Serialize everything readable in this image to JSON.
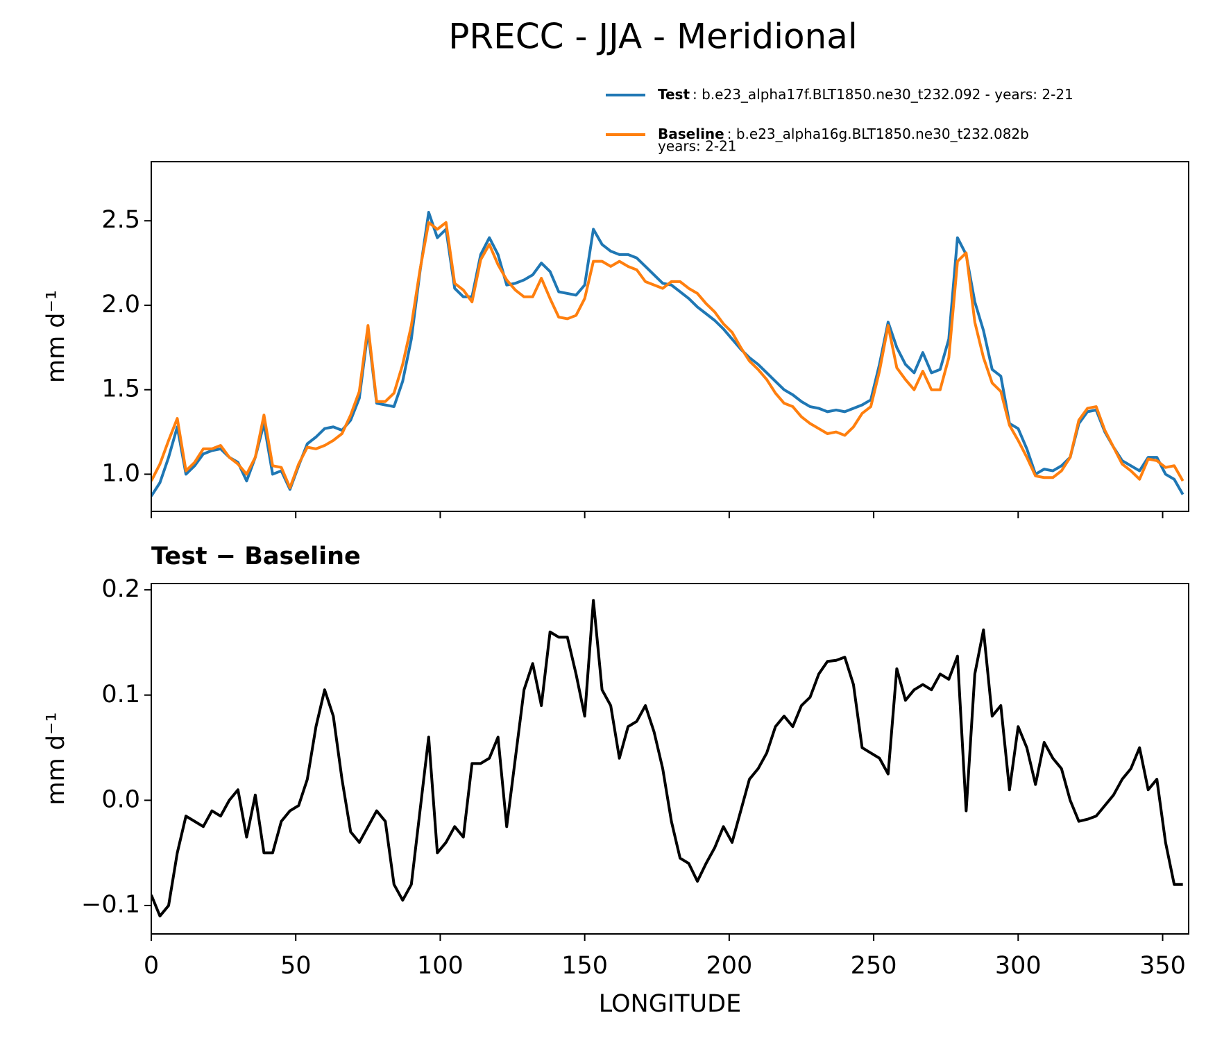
{
  "chart_data": [
    {
      "type": "line",
      "title": "PRECC - JJA - Meridional",
      "ylabel": "mm d⁻¹",
      "x": [
        0,
        3,
        6,
        9,
        12,
        15,
        18,
        21,
        24,
        27,
        30,
        33,
        36,
        39,
        42,
        45,
        48,
        51,
        54,
        57,
        60,
        63,
        66,
        69,
        72,
        75,
        78,
        81,
        84,
        87,
        90,
        93,
        96,
        99,
        102,
        105,
        108,
        111,
        114,
        117,
        120,
        123,
        126,
        129,
        132,
        135,
        138,
        141,
        144,
        147,
        150,
        153,
        156,
        159,
        162,
        165,
        168,
        171,
        174,
        177,
        180,
        183,
        186,
        189,
        192,
        195,
        198,
        201,
        204,
        207,
        210,
        213,
        216,
        219,
        222,
        225,
        228,
        231,
        234,
        237,
        240,
        243,
        246,
        249,
        252,
        255,
        258,
        261,
        264,
        267,
        270,
        273,
        276,
        279,
        282,
        285,
        288,
        291,
        294,
        297,
        300,
        303,
        306,
        309,
        312,
        315,
        318,
        321,
        324,
        327,
        330,
        333,
        336,
        339,
        342,
        345,
        348,
        351,
        354,
        357
      ],
      "series": [
        {
          "name": "Test",
          "description": [
            ": b.e23_alpha17f.BLT1850.ne30_t232.092 - years: 2-21"
          ],
          "color": "#1f77b4",
          "values": [
            0.87,
            0.95,
            1.1,
            1.28,
            1.0,
            1.05,
            1.12,
            1.14,
            1.15,
            1.1,
            1.07,
            0.96,
            1.1,
            1.3,
            1.0,
            1.02,
            0.91,
            1.05,
            1.18,
            1.22,
            1.27,
            1.28,
            1.26,
            1.32,
            1.45,
            1.85,
            1.42,
            1.41,
            1.4,
            1.55,
            1.8,
            2.2,
            2.55,
            2.4,
            2.45,
            2.1,
            2.05,
            2.05,
            2.3,
            2.4,
            2.3,
            2.12,
            2.13,
            2.15,
            2.18,
            2.25,
            2.2,
            2.08,
            2.07,
            2.06,
            2.12,
            2.45,
            2.36,
            2.32,
            2.3,
            2.3,
            2.28,
            2.23,
            2.18,
            2.13,
            2.12,
            2.08,
            2.04,
            1.99,
            1.95,
            1.91,
            1.86,
            1.8,
            1.74,
            1.69,
            1.65,
            1.6,
            1.55,
            1.5,
            1.47,
            1.43,
            1.4,
            1.39,
            1.37,
            1.38,
            1.37,
            1.39,
            1.41,
            1.44,
            1.65,
            1.9,
            1.75,
            1.65,
            1.6,
            1.72,
            1.6,
            1.62,
            1.8,
            2.4,
            2.3,
            2.02,
            1.85,
            1.62,
            1.58,
            1.3,
            1.27,
            1.15,
            1.0,
            1.03,
            1.02,
            1.05,
            1.1,
            1.3,
            1.37,
            1.38,
            1.25,
            1.16,
            1.08,
            1.05,
            1.02,
            1.1,
            1.1,
            1.0,
            0.97,
            0.88
          ]
        },
        {
          "name": "Baseline",
          "description": [
            ": b.e23_alpha16g.BLT1850.ne30_t232.082b",
            "years: 2-21"
          ],
          "color": "#ff7f0e",
          "values": [
            0.96,
            1.06,
            1.2,
            1.33,
            1.02,
            1.07,
            1.15,
            1.15,
            1.17,
            1.1,
            1.06,
            1.0,
            1.1,
            1.35,
            1.05,
            1.04,
            0.92,
            1.06,
            1.16,
            1.15,
            1.17,
            1.2,
            1.24,
            1.35,
            1.49,
            1.88,
            1.43,
            1.43,
            1.48,
            1.65,
            1.88,
            2.21,
            2.49,
            2.45,
            2.49,
            2.13,
            2.09,
            2.02,
            2.27,
            2.36,
            2.24,
            2.15,
            2.09,
            2.05,
            2.05,
            2.16,
            2.04,
            1.93,
            1.92,
            1.94,
            2.04,
            2.26,
            2.26,
            2.23,
            2.26,
            2.23,
            2.21,
            2.14,
            2.12,
            2.1,
            2.14,
            2.14,
            2.1,
            2.07,
            2.01,
            1.96,
            1.89,
            1.84,
            1.75,
            1.67,
            1.62,
            1.56,
            1.48,
            1.42,
            1.4,
            1.34,
            1.3,
            1.27,
            1.24,
            1.25,
            1.23,
            1.28,
            1.36,
            1.4,
            1.61,
            1.88,
            1.63,
            1.56,
            1.5,
            1.61,
            1.5,
            1.5,
            1.69,
            2.26,
            2.31,
            1.9,
            1.69,
            1.54,
            1.49,
            1.29,
            1.2,
            1.1,
            0.99,
            0.98,
            0.98,
            1.02,
            1.1,
            1.32,
            1.39,
            1.4,
            1.26,
            1.16,
            1.06,
            1.02,
            0.97,
            1.09,
            1.08,
            1.04,
            1.05,
            0.96
          ]
        }
      ],
      "xlim": [
        0,
        359
      ],
      "ylim": [
        0.78,
        2.85
      ],
      "yticks": [
        {
          "value": 1,
          "label": "1.0"
        },
        1.5,
        {
          "value": 2,
          "label": "2.0"
        },
        2.5
      ]
    },
    {
      "type": "line",
      "title": "Test − Baseline",
      "ylabel": "mm d⁻¹",
      "xlabel": "LONGITUDE",
      "x": [
        0,
        3,
        6,
        9,
        12,
        15,
        18,
        21,
        24,
        27,
        30,
        33,
        36,
        39,
        42,
        45,
        48,
        51,
        54,
        57,
        60,
        63,
        66,
        69,
        72,
        75,
        78,
        81,
        84,
        87,
        90,
        93,
        96,
        99,
        102,
        105,
        108,
        111,
        114,
        117,
        120,
        123,
        126,
        129,
        132,
        135,
        138,
        141,
        144,
        147,
        150,
        153,
        156,
        159,
        162,
        165,
        168,
        171,
        174,
        177,
        180,
        183,
        186,
        189,
        192,
        195,
        198,
        201,
        204,
        207,
        210,
        213,
        216,
        219,
        222,
        225,
        228,
        231,
        234,
        237,
        240,
        243,
        246,
        249,
        252,
        255,
        258,
        261,
        264,
        267,
        270,
        273,
        276,
        279,
        282,
        285,
        288,
        291,
        294,
        297,
        300,
        303,
        306,
        309,
        312,
        315,
        318,
        321,
        324,
        327,
        330,
        333,
        336,
        339,
        342,
        345,
        348,
        351,
        354,
        357
      ],
      "series": [
        {
          "color": "#000000",
          "values": [
            -0.09,
            -0.11,
            -0.1,
            -0.05,
            -0.015,
            -0.02,
            -0.025,
            -0.01,
            -0.015,
            0.0,
            0.01,
            -0.035,
            0.005,
            -0.05,
            -0.05,
            -0.02,
            -0.01,
            -0.005,
            0.02,
            0.07,
            0.105,
            0.08,
            0.02,
            -0.03,
            -0.04,
            -0.025,
            -0.01,
            -0.02,
            -0.08,
            -0.095,
            -0.08,
            -0.01,
            0.06,
            -0.05,
            -0.04,
            -0.025,
            -0.035,
            0.035,
            0.035,
            0.04,
            0.06,
            -0.025,
            0.04,
            0.105,
            0.13,
            0.09,
            0.16,
            0.155,
            0.155,
            0.12,
            0.08,
            0.19,
            0.105,
            0.09,
            0.04,
            0.07,
            0.075,
            0.09,
            0.065,
            0.03,
            -0.02,
            -0.055,
            -0.06,
            -0.077,
            -0.06,
            -0.045,
            -0.025,
            -0.04,
            -0.01,
            0.02,
            0.03,
            0.045,
            0.07,
            0.08,
            0.07,
            0.09,
            0.098,
            0.12,
            0.132,
            0.133,
            0.136,
            0.11,
            0.05,
            0.045,
            0.04,
            0.025,
            0.125,
            0.095,
            0.105,
            0.11,
            0.105,
            0.12,
            0.115,
            0.137,
            -0.01,
            0.12,
            0.162,
            0.08,
            0.09,
            0.01,
            0.07,
            0.05,
            0.015,
            0.055,
            0.04,
            0.03,
            0.0,
            -0.02,
            -0.018,
            -0.015,
            -0.005,
            0.005,
            0.02,
            0.03,
            0.05,
            0.01,
            0.02,
            -0.04,
            -0.08,
            -0.08
          ]
        }
      ],
      "xlim": [
        0,
        359
      ],
      "ylim": [
        -0.127,
        0.206
      ],
      "xticks": [
        0,
        50,
        100,
        150,
        200,
        250,
        300,
        350
      ],
      "yticks": [
        {
          "value": -0.1,
          "label": "−0.1"
        },
        {
          "value": 0,
          "label": "0.0"
        },
        0.1,
        0.2
      ]
    }
  ]
}
